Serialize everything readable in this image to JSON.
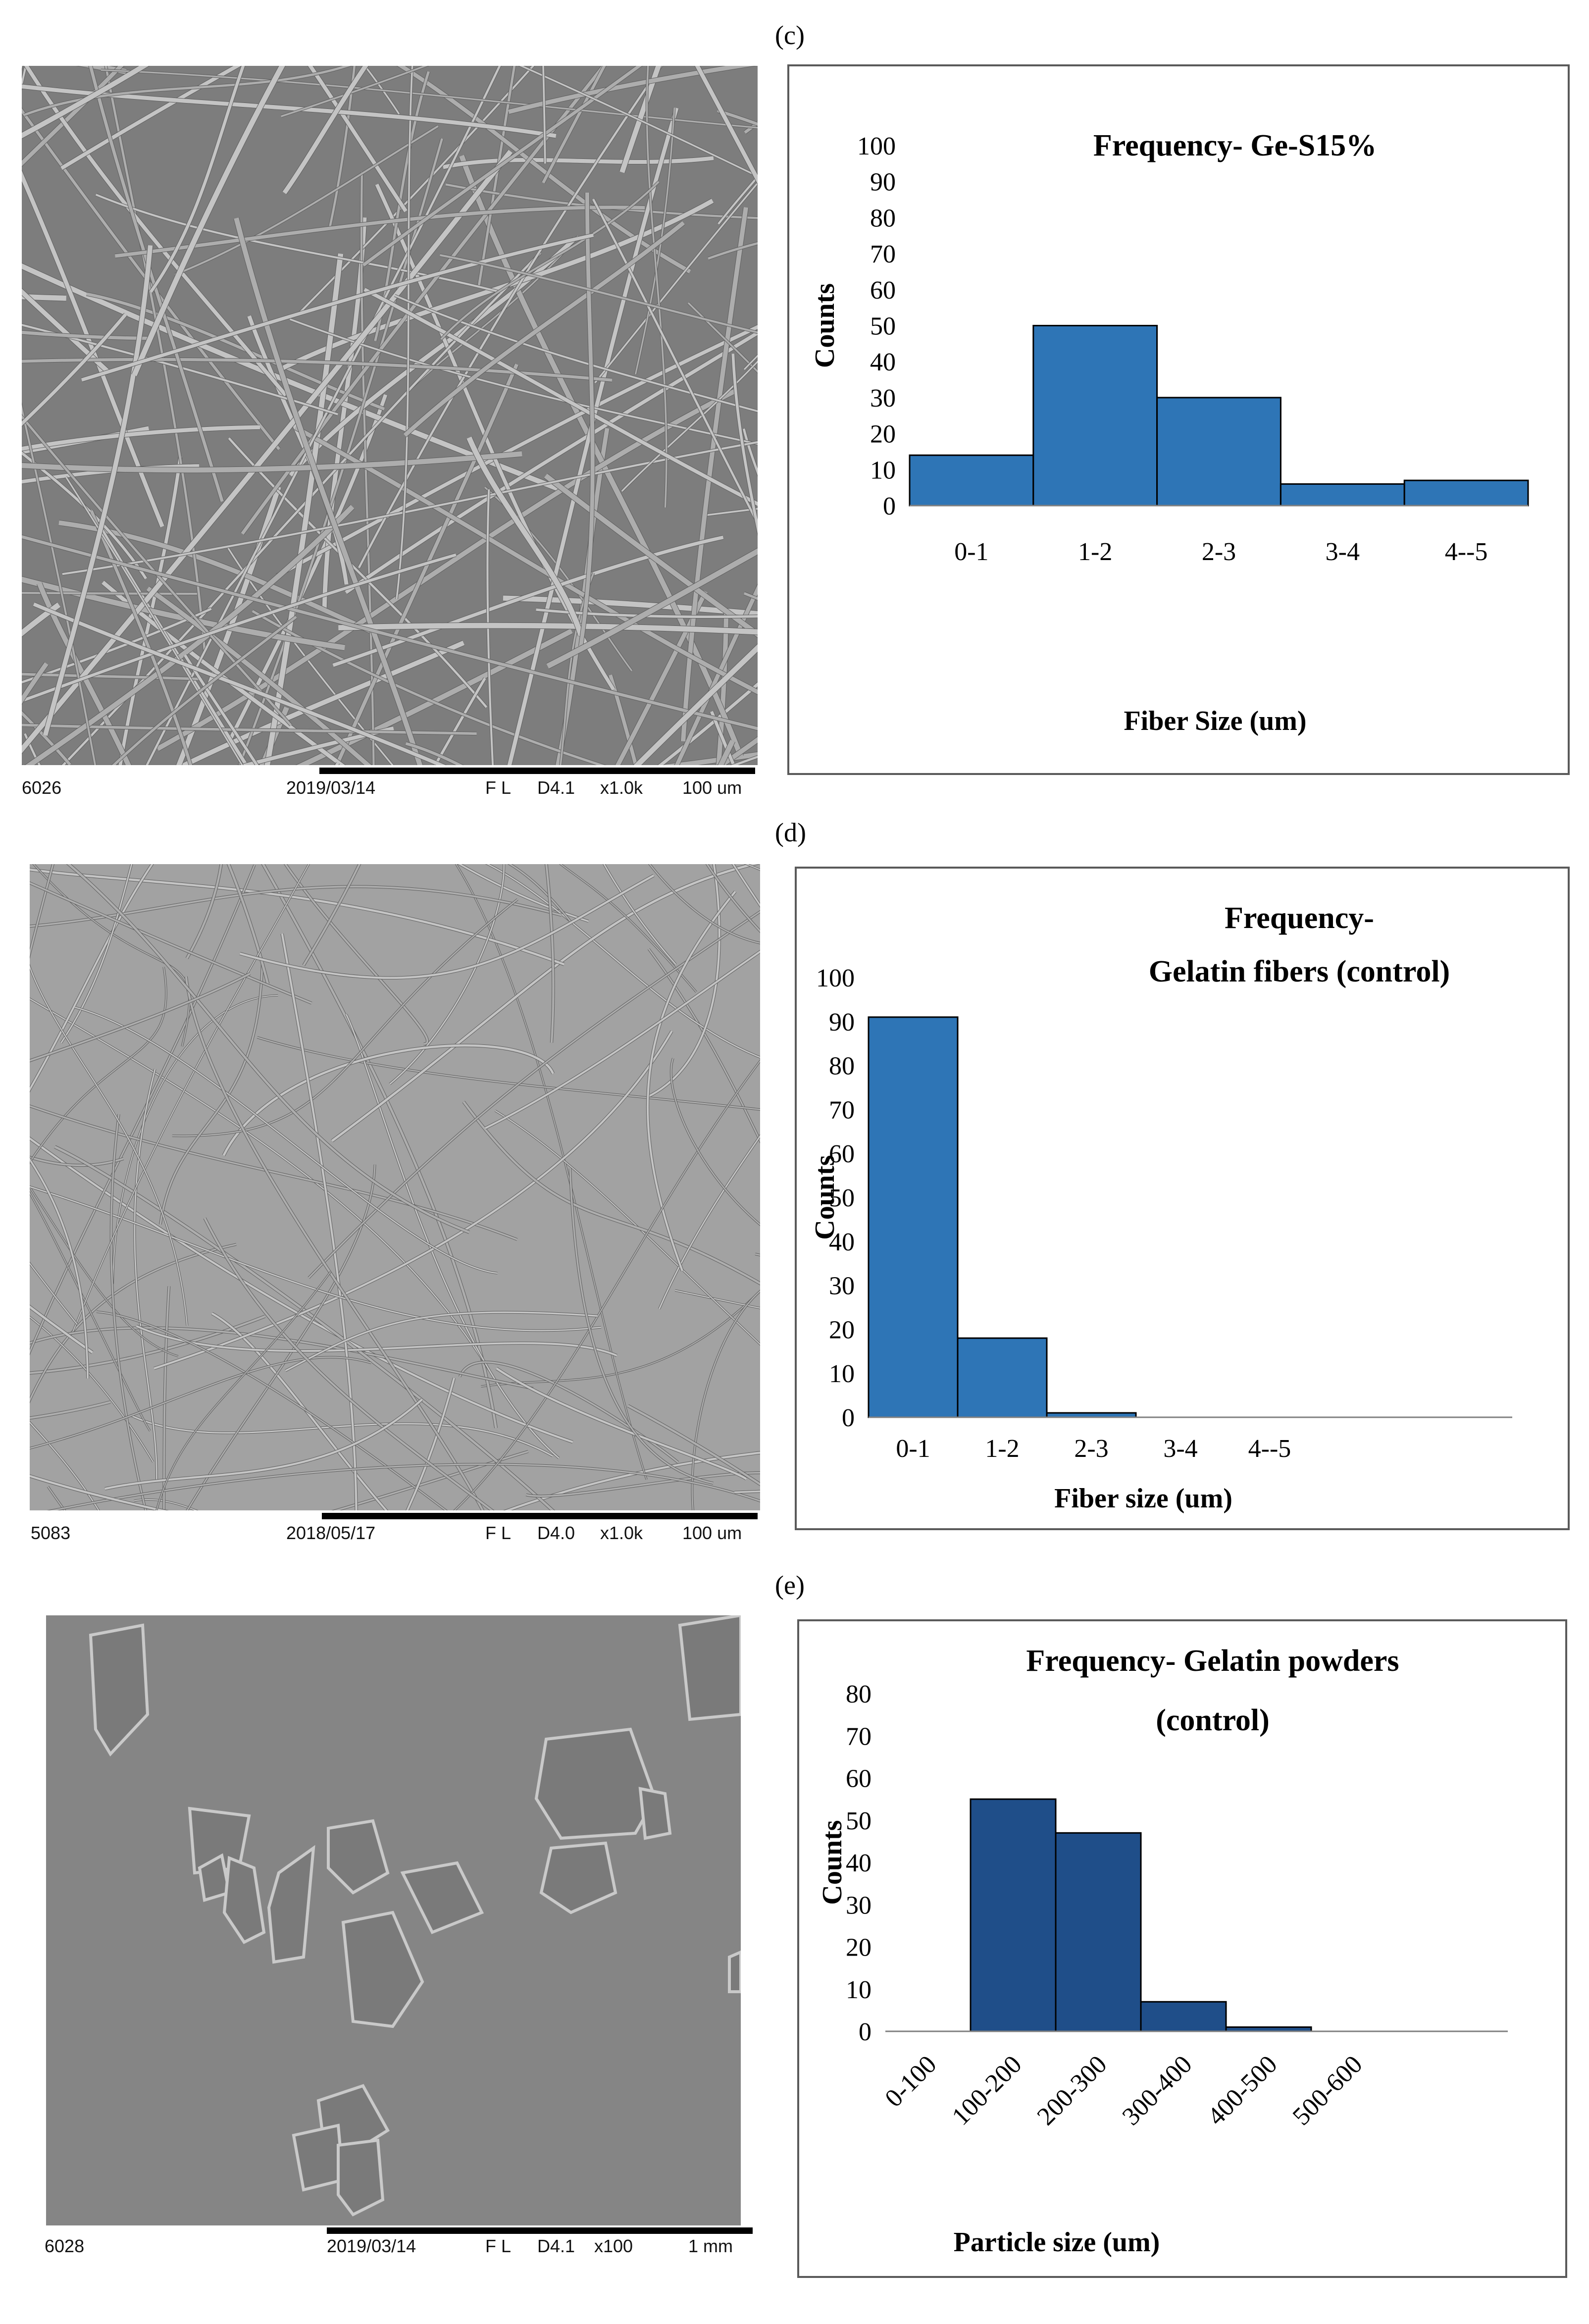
{
  "panels": {
    "c": {
      "letter": "(c)",
      "sem_caption": {
        "id": "6026",
        "date": "2019/03/14",
        "mode": "F L",
        "detector": "D4.1",
        "mag": "x1.0k",
        "scale": "100 um"
      }
    },
    "d": {
      "letter": "(d)",
      "sem_caption": {
        "id": "5083",
        "date": "2018/05/17",
        "mode": "F L",
        "detector": "D4.0",
        "mag": "x1.0k",
        "scale": "100 um"
      }
    },
    "e": {
      "letter": "(e)",
      "sem_caption": {
        "id": "6028",
        "date": "2019/03/14",
        "mode": "F L",
        "detector": "D4.1",
        "mag": "x100",
        "scale": "1 mm"
      }
    }
  },
  "colors": {
    "bar_c": "#2e75b6",
    "bar_d": "#2e75b6",
    "bar_e": "#1f4e89",
    "bar_edge": "#000000",
    "sem_bg": "#8a8a8a"
  },
  "chart_data": [
    {
      "type": "bar",
      "title_lines": [
        "Frequency-  Ge-S15%"
      ],
      "xlabel": "Fiber Size (um)",
      "ylabel": "Counts",
      "categories": [
        "0-1",
        "1-2",
        "2-3",
        "3-4",
        "4--5"
      ],
      "values": [
        14,
        50,
        30,
        6,
        7
      ],
      "ylim": [
        0,
        100
      ],
      "yticks": [
        "0",
        "10",
        "20",
        "30",
        "40",
        "50",
        "60",
        "70",
        "80",
        "90",
        "100"
      ],
      "grid": false,
      "legend": "none"
    },
    {
      "type": "bar",
      "title_lines": [
        "Frequency-",
        "Gelatin fibers (control)"
      ],
      "xlabel": "Fiber size (um)",
      "ylabel": "Counts",
      "categories": [
        "0-1",
        "1-2",
        "2-3",
        "3-4",
        "4--5"
      ],
      "values": [
        91,
        18,
        1,
        0,
        0
      ],
      "ylim": [
        0,
        100
      ],
      "yticks": [
        "0",
        "10",
        "20",
        "30",
        "40",
        "50",
        "60",
        "70",
        "80",
        "90",
        "100"
      ],
      "grid": false,
      "legend": "none"
    },
    {
      "type": "bar",
      "title_lines": [
        "Frequency-  Gelatin powders",
        "(control)"
      ],
      "xlabel": "Particle size (um)",
      "ylabel": "Counts",
      "categories": [
        "0-100",
        "100-200",
        "200-300",
        "300-400",
        "400-500",
        "500-600"
      ],
      "values": [
        0,
        55,
        47,
        7,
        1,
        0
      ],
      "ylim": [
        0,
        80
      ],
      "yticks": [
        "0",
        "10",
        "20",
        "30",
        "40",
        "50",
        "60",
        "70",
        "80"
      ],
      "grid": false,
      "legend": "none"
    }
  ]
}
